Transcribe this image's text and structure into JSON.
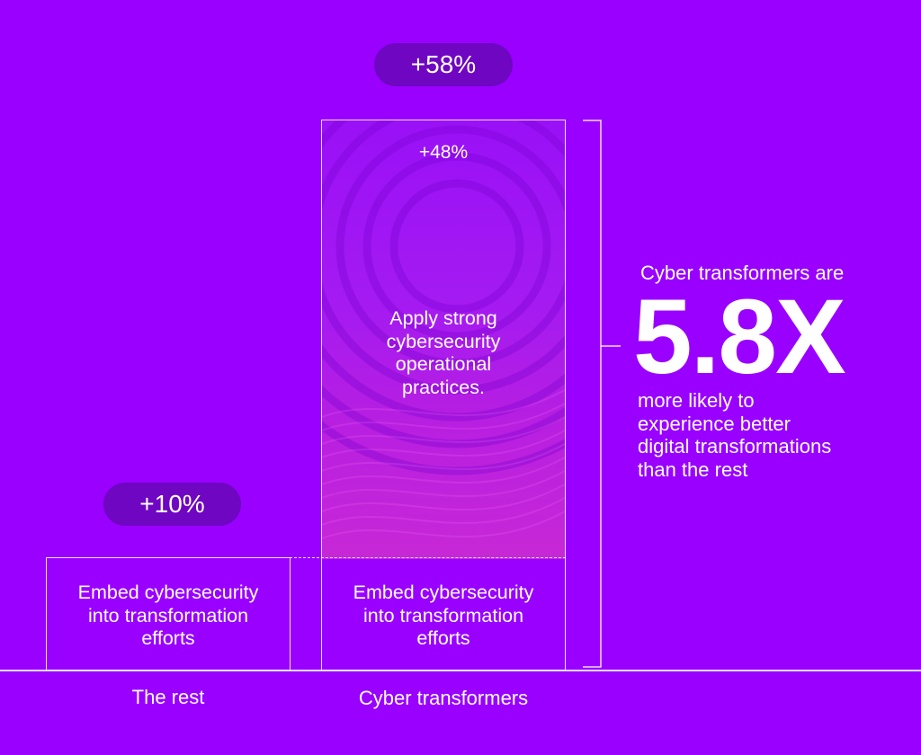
{
  "colors": {
    "background": "#9900ff",
    "pill": "#6f06c2",
    "highlight": "#c728d6",
    "text": "#ffffff"
  },
  "chart_data": {
    "type": "bar",
    "categories": [
      "The rest",
      "Cyber transformers"
    ],
    "series": [
      {
        "values": [
          10,
          10
        ]
      },
      {
        "values": [
          0,
          48
        ]
      }
    ],
    "totals": [
      10,
      58
    ],
    "ylim": [
      0,
      58
    ],
    "grid": false,
    "legend": "none",
    "title": "",
    "xlabel": "",
    "ylabel": ""
  },
  "labels": {
    "rest_total": "+10%",
    "transformers_total": "+58%",
    "top_segment_value": "+48%",
    "top_segment_text": "Apply strong\ncybersecurity\noperational\npractices.",
    "base_segment_text_rest": "Embed cybersecurity\ninto transformation\nefforts",
    "base_segment_text_transformers": "Embed cybersecurity\ninto transformation\nefforts",
    "category_rest": "The rest",
    "category_transformers": "Cyber transformers"
  },
  "callout": {
    "lead": "Cyber transformers are",
    "multiplier": "5.8X",
    "body": "more likely to\nexperience better\ndigital transformations\nthan the rest"
  },
  "icons": {
    "bracket": "bracket-icon",
    "waves": "wave-pattern-icon"
  }
}
